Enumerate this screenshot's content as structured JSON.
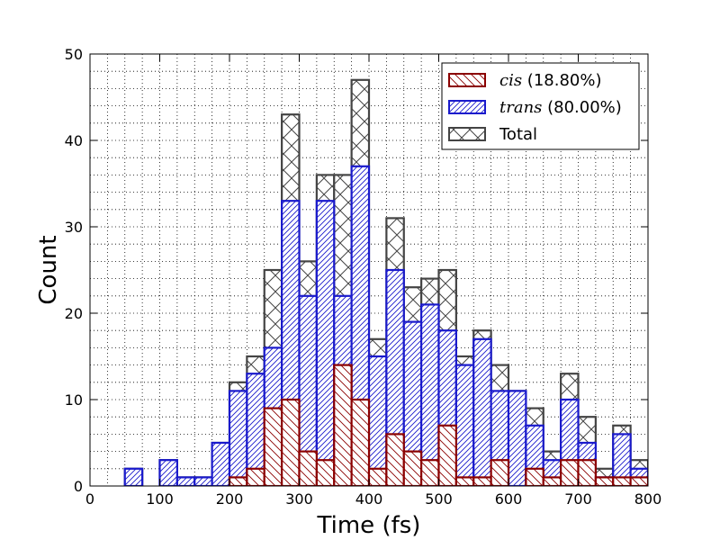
{
  "chart_data": {
    "type": "bar",
    "xlabel": "Time (fs)",
    "ylabel": "Count",
    "xlim": [
      0,
      800
    ],
    "ylim": [
      0,
      50
    ],
    "xticks": [
      0,
      100,
      200,
      300,
      400,
      500,
      600,
      700,
      800
    ],
    "yticks": [
      0,
      10,
      20,
      30,
      40,
      50
    ],
    "grid": "dotted",
    "legend_position": "top-right",
    "bin_width": 25,
    "bin_starts": [
      0,
      25,
      50,
      75,
      100,
      125,
      150,
      175,
      200,
      225,
      250,
      275,
      300,
      325,
      350,
      375,
      400,
      425,
      450,
      475,
      500,
      525,
      550,
      575,
      600,
      625,
      650,
      675,
      700,
      725,
      750,
      775
    ],
    "series": [
      {
        "key": "total",
        "legend_name": "Total",
        "legend_pct": "",
        "color": "#444444",
        "pattern": "cross",
        "values": [
          0,
          0,
          2,
          0,
          3,
          1,
          1,
          5,
          12,
          15,
          25,
          43,
          26,
          36,
          36,
          47,
          17,
          31,
          23,
          24,
          25,
          15,
          18,
          14,
          11,
          9,
          4,
          13,
          8,
          2,
          7,
          3
        ]
      },
      {
        "key": "trans",
        "legend_name": "trans",
        "legend_pct": "(80.00%)",
        "color": "#1a1acc",
        "pattern": "hatch-dense",
        "values": [
          0,
          0,
          2,
          0,
          3,
          1,
          1,
          5,
          11,
          13,
          16,
          33,
          22,
          33,
          22,
          37,
          15,
          25,
          19,
          21,
          18,
          14,
          17,
          11,
          11,
          7,
          3,
          10,
          5,
          1,
          6,
          2
        ]
      },
      {
        "key": "cis",
        "legend_name": "cis",
        "legend_pct": "(18.80%)",
        "color": "#8b0000",
        "pattern": "hatch-back",
        "values": [
          0,
          0,
          0,
          0,
          0,
          0,
          0,
          0,
          1,
          2,
          9,
          10,
          4,
          3,
          14,
          10,
          2,
          6,
          4,
          3,
          7,
          1,
          1,
          3,
          0,
          2,
          1,
          3,
          3,
          1,
          1,
          1
        ]
      }
    ]
  }
}
